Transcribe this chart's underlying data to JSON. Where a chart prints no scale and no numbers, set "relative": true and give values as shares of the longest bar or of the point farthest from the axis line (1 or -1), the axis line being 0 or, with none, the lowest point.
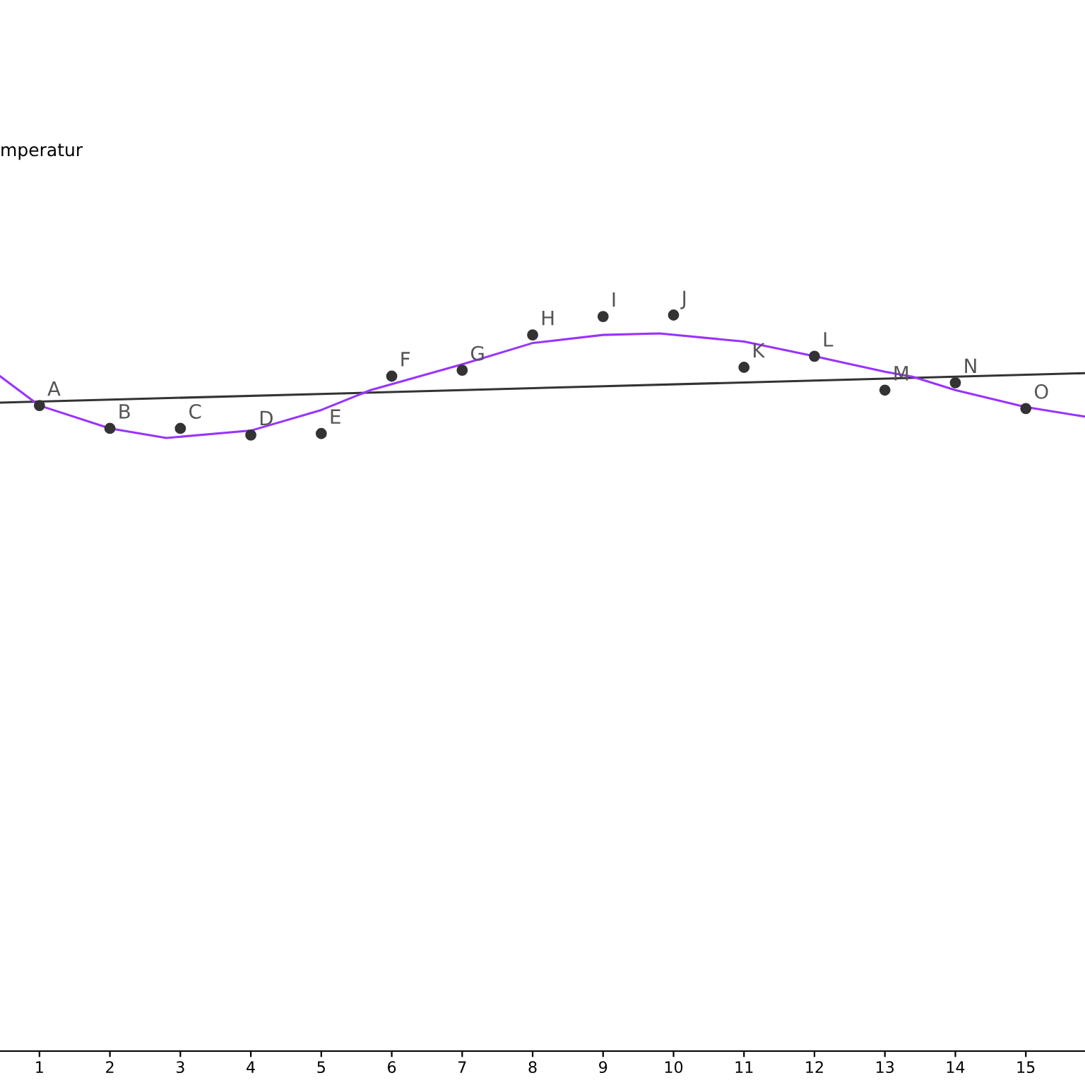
{
  "chart_data": {
    "type": "scatter",
    "relative": true,
    "xlim": [
      0.44,
      15.84
    ],
    "xticks": [
      1,
      2,
      3,
      4,
      5,
      6,
      7,
      8,
      9,
      10,
      11,
      12,
      13,
      14,
      15
    ],
    "grid": false,
    "legend": false,
    "series": [
      {
        "marker": "circle",
        "color": "#333333",
        "x": [
          1,
          2,
          3,
          4,
          5,
          6,
          7,
          8,
          9,
          10,
          11,
          12,
          13,
          14,
          15
        ],
        "values": [
          0.877,
          0.846,
          0.846,
          0.837,
          0.839,
          0.917,
          0.925,
          0.973,
          0.998,
          1,
          0.929,
          0.944,
          0.898,
          0.908,
          0.873
        ]
      },
      {
        "type": "line",
        "marker": "none",
        "color": "#333333",
        "x": [
          0.44,
          15.84
        ],
        "values": [
          0.881,
          0.921
        ]
      },
      {
        "type": "line",
        "marker": "none",
        "color": "#9933ff",
        "x": [
          0.44,
          1,
          2,
          2.8,
          4,
          5,
          5.7,
          7,
          8,
          9,
          9.8,
          11,
          12,
          13,
          13.4,
          14,
          15,
          15.84
        ],
        "values": [
          0.917,
          0.877,
          0.846,
          0.833,
          0.843,
          0.871,
          0.898,
          0.933,
          0.962,
          0.973,
          0.975,
          0.964,
          0.944,
          0.923,
          0.916,
          0.898,
          0.875,
          0.862
        ]
      }
    ],
    "annotations": [
      "mperatur",
      {
        "text": "A",
        "x": 1,
        "y": 0.877
      },
      {
        "text": "B",
        "x": 2,
        "y": 0.846
      },
      {
        "text": "C",
        "x": 3,
        "y": 0.846
      },
      {
        "text": "D",
        "x": 4,
        "y": 0.837
      },
      {
        "text": "E",
        "x": 5,
        "y": 0.839
      },
      {
        "text": "F",
        "x": 6,
        "y": 0.917
      },
      {
        "text": "G",
        "x": 7,
        "y": 0.925
      },
      {
        "text": "H",
        "x": 8,
        "y": 0.973
      },
      {
        "text": "I",
        "x": 9,
        "y": 0.998
      },
      {
        "text": "J",
        "x": 10,
        "y": 1
      },
      {
        "text": "K",
        "x": 11,
        "y": 0.929
      },
      {
        "text": "L",
        "x": 12,
        "y": 0.944
      },
      {
        "text": "M",
        "x": 13,
        "y": 0.898
      },
      {
        "text": "N",
        "x": 14,
        "y": 0.908
      },
      {
        "text": "O",
        "x": 15,
        "y": 0.873
      }
    ]
  }
}
